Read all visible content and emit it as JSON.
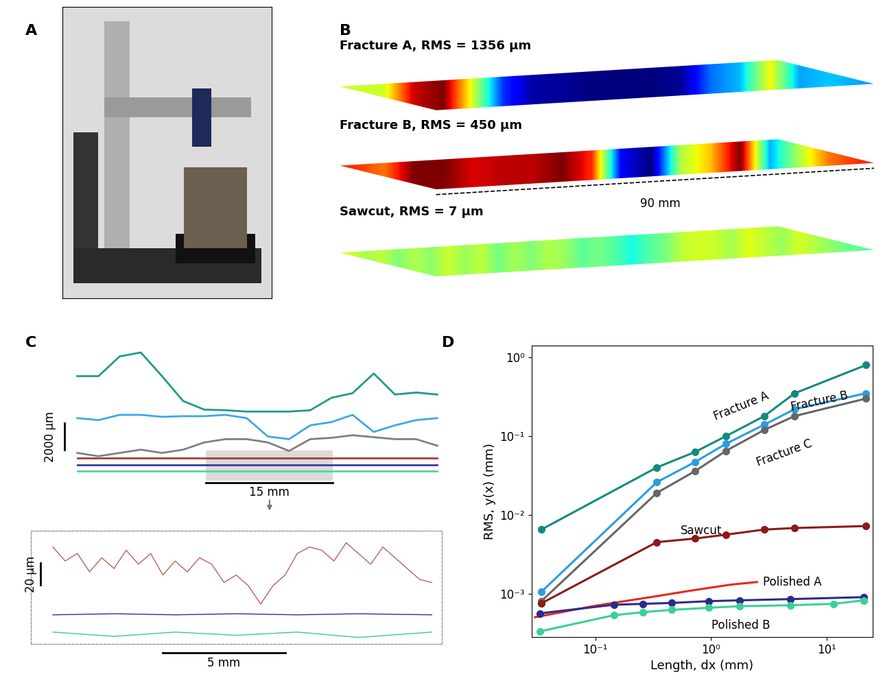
{
  "panel_labels": [
    "A",
    "B",
    "C",
    "D"
  ],
  "panel_b": {
    "surfaces": [
      {
        "title": "Fracture A, RMS = 1356 μm"
      },
      {
        "title": "Fracture B, RMS = 450 μm"
      },
      {
        "title": "Sawcut, RMS = 7 μm"
      }
    ],
    "length_label": "90 mm"
  },
  "panel_c": {
    "type": "line",
    "tick_labels": false,
    "profiles": [
      {
        "color": "#1f9a8a",
        "x": [
          0,
          2.5,
          5,
          7.5,
          10,
          12.5,
          15,
          17.5,
          20,
          22.5,
          25,
          27.5,
          30,
          32.5,
          35,
          37.5,
          40,
          42.5
        ],
        "values": [
          2700,
          2700,
          4200,
          4500,
          2700,
          800,
          150,
          100,
          0,
          0,
          0,
          100,
          1050,
          1400,
          2900,
          1300,
          1450,
          1300
        ]
      },
      {
        "color": "#3fa7e8",
        "x": [
          0,
          2.5,
          5,
          7.5,
          10,
          12.5,
          15,
          17.5,
          20,
          22.5,
          25,
          27.5,
          30,
          32.5,
          35,
          37.5,
          40,
          42.5
        ],
        "values": [
          1600,
          1450,
          1850,
          1850,
          1700,
          1750,
          1750,
          1850,
          1600,
          200,
          0,
          1050,
          1300,
          1850,
          550,
          1050,
          1450,
          1600
        ]
      },
      {
        "color": "#808080",
        "x": [
          0,
          2.5,
          5,
          7.5,
          10,
          12.5,
          15,
          17.5,
          20,
          22.5,
          25,
          27.5,
          30,
          32.5,
          35,
          37.5,
          40,
          42.5
        ],
        "values": [
          250,
          0,
          250,
          500,
          250,
          500,
          1050,
          1300,
          1300,
          1050,
          400,
          1300,
          1400,
          1600,
          1450,
          1300,
          1300,
          800
        ]
      },
      {
        "color": "#a0403c",
        "x": [
          0,
          42.5
        ],
        "values": [
          0,
          0
        ]
      },
      {
        "color": "#3b3b9a",
        "x": [
          0,
          42.5
        ],
        "values": [
          0,
          0
        ]
      },
      {
        "color": "#4fd6a6",
        "x": [
          0,
          42.5
        ],
        "values": [
          0,
          0
        ]
      }
    ],
    "scale_y": {
      "value": 2000,
      "label": "2000 μm"
    },
    "scale_x": {
      "value": 15,
      "label": "15 mm"
    },
    "inset": {
      "profiles": [
        {
          "color": "#c0605a",
          "x": [
            0,
            0.5,
            1,
            1.5,
            2,
            2.5,
            3,
            3.5,
            4,
            4.5,
            5,
            5.5,
            6,
            6.5,
            7,
            7.5,
            8,
            8.5,
            9,
            9.5,
            10,
            10.5,
            11,
            11.5,
            12,
            12.5,
            13,
            13.5,
            14,
            14.5,
            15,
            15.5
          ],
          "values": [
            53,
            40,
            47,
            30,
            43,
            33,
            50,
            37,
            47,
            27,
            40,
            30,
            43,
            37,
            20,
            27,
            17,
            0,
            17,
            27,
            47,
            53,
            50,
            40,
            57,
            47,
            37,
            53,
            43,
            33,
            23,
            20
          ]
        },
        {
          "color": "#2e2e9e",
          "x": [
            0,
            2.5,
            5,
            7.5,
            10,
            12.5,
            15.5
          ],
          "values": [
            2,
            3,
            2,
            3,
            2,
            3,
            2
          ]
        },
        {
          "color": "#3cc896",
          "x": [
            0,
            2.5,
            5,
            7.5,
            10,
            12.5,
            15.5
          ],
          "values": [
            1,
            -3,
            1,
            -2,
            1,
            -4,
            1
          ]
        }
      ],
      "scale_y": {
        "value": 20,
        "label": "20 μm"
      },
      "scale_x": {
        "value": 5,
        "label": "5 mm"
      }
    }
  },
  "chart_data": {
    "type": "line",
    "xlabel": "Length, dx (mm)",
    "ylabel": "RMS, y(x) (mm)",
    "log": true,
    "grid": false,
    "xlim": [
      0.028,
      25
    ],
    "ylim": [
      0.00028,
      1.4
    ],
    "xticks": [
      {
        "value": 0.1,
        "label": "10⁻¹"
      },
      {
        "value": 1,
        "label": "10⁰"
      },
      {
        "value": 10,
        "label": "10¹"
      }
    ],
    "yticks": [
      {
        "value": 0.001,
        "label": "10⁻³"
      },
      {
        "value": 0.01,
        "label": "10⁻²"
      },
      {
        "value": 0.1,
        "label": "10⁻¹"
      },
      {
        "value": 1,
        "label": "10⁰"
      }
    ],
    "series": [
      {
        "name": "Fracture A",
        "color": "#138a80",
        "marker": "o",
        "x": [
          0.034,
          0.34,
          0.73,
          1.35,
          2.9,
          5.3,
          22
        ],
        "values": [
          0.0065,
          0.04,
          0.063,
          0.1,
          0.18,
          0.35,
          0.8
        ]
      },
      {
        "name": "Fracture B",
        "color": "#2a9de0",
        "marker": "o",
        "x": [
          0.034,
          0.34,
          0.73,
          1.35,
          2.9,
          5.3,
          22
        ],
        "values": [
          0.00105,
          0.026,
          0.047,
          0.08,
          0.14,
          0.22,
          0.35
        ]
      },
      {
        "name": "Fracture C",
        "color": "#666666",
        "marker": "o",
        "x": [
          0.034,
          0.34,
          0.73,
          1.35,
          2.9,
          5.3,
          22
        ],
        "values": [
          0.0008,
          0.019,
          0.036,
          0.065,
          0.12,
          0.18,
          0.3
        ]
      },
      {
        "name": "Sawcut",
        "color": "#8b1a1a",
        "marker": "o",
        "x": [
          0.034,
          0.34,
          0.73,
          1.35,
          2.9,
          5.3,
          22
        ],
        "values": [
          0.00075,
          0.0045,
          0.005,
          0.0056,
          0.0065,
          0.0068,
          0.0072
        ]
      },
      {
        "name": "Polished A",
        "color": "#e8261e",
        "marker": "none",
        "x": [
          0.03,
          0.1,
          0.3,
          0.7,
          1.5,
          2.5
        ],
        "values": [
          0.0005,
          0.0007,
          0.0009,
          0.0011,
          0.0013,
          0.0014
        ]
      },
      {
        "color": "#2b2b8c",
        "marker": "o",
        "x": [
          0.033,
          0.144,
          0.258,
          0.46,
          0.96,
          1.78,
          4.9,
          21
        ],
        "values": [
          0.00056,
          0.00072,
          0.00074,
          0.00076,
          0.0008,
          0.00082,
          0.00085,
          0.0009
        ]
      },
      {
        "name": "Polished B",
        "color": "#3ccf9a",
        "marker": "o",
        "x": [
          0.033,
          0.144,
          0.258,
          0.46,
          0.96,
          1.78,
          4.9,
          11.6,
          21
        ],
        "values": [
          0.00033,
          0.00053,
          0.00058,
          0.00062,
          0.00066,
          0.00069,
          0.00071,
          0.00074,
          0.00082
        ]
      }
    ]
  }
}
